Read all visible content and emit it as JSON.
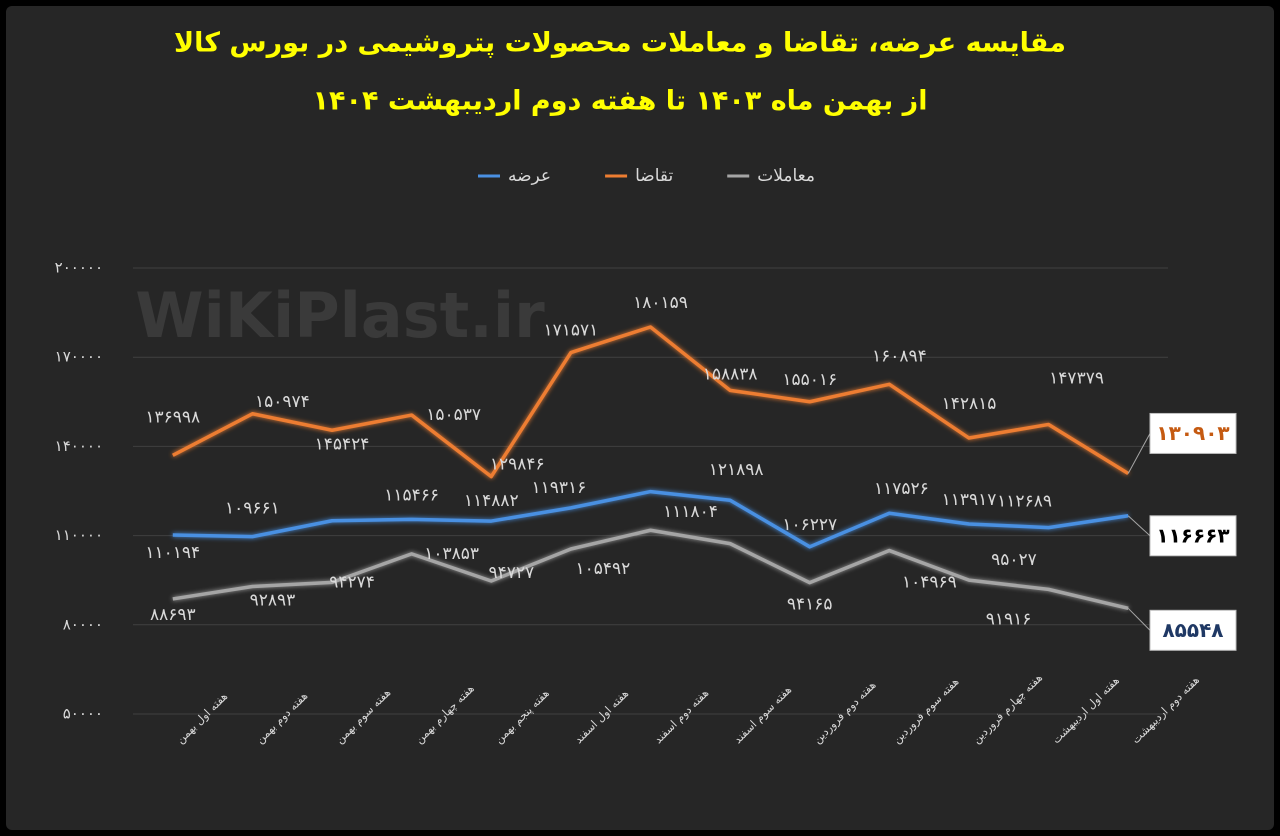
{
  "chart_data": {
    "type": "line",
    "title": "مقایسه عرضه، تقاضا و معاملات محصولات پتروشیمی در بورس کالا",
    "subtitle": "از بهمن ماه ۱۴۰۳ تا هفته دوم اردیبهشت ۱۴۰۴",
    "watermark": "WiKiPlast.ir",
    "categories": [
      "هفته اول بهمن",
      "هفته دوم بهمن",
      "هفته سوم بهمن",
      "هفته چهارم بهمن",
      "هفته پنجم بهمن",
      "هفته اول اسفند",
      "هفته دوم اسفند",
      "هفته سوم اسفند",
      "هفته دوم فروردین",
      "هفته سوم فروردین",
      "هفته چهارم فروردین",
      "هفته اول اردیبهشت",
      "هفته دوم اردیبهشت"
    ],
    "series": [
      {
        "name": "عرضه",
        "color": "#4a90e2",
        "values": [
          110194,
          109661,
          115000,
          115466,
          114882,
          119316,
          124800,
          121898,
          106227,
          117526,
          113917,
          112689,
          116663
        ],
        "value_labels": [
          "۱۱۰۱۹۴",
          "۱۰۹۶۶۱",
          null,
          "۱۱۵۴۶۶",
          "۱۱۴۸۸۲",
          "۱۱۹۳۱۶",
          null,
          "۱۲۱۸۹۸",
          "۱۰۶۲۲۷",
          "۱۱۷۵۲۶",
          "۱۱۳۹۱۷",
          "۱۱۲۶۸۹",
          "۱۱۶۶۶۳"
        ]
      },
      {
        "name": "تقاضا",
        "color": "#ed7d31",
        "values": [
          136998,
          150974,
          145424,
          150537,
          129846,
          171571,
          180159,
          158838,
          155016,
          160894,
          142815,
          147379,
          130903
        ],
        "value_labels": [
          "۱۳۶۹۹۸",
          "۱۵۰۹۷۴",
          "۱۴۵۴۲۴",
          "۱۵۰۵۳۷",
          "۱۲۹۸۴۶",
          "۱۷۱۵۷۱",
          "۱۸۰۱۵۹",
          "۱۵۸۸۳۸",
          "۱۵۵۰۱۶",
          "۱۶۰۸۹۴",
          "۱۴۲۸۱۵",
          "۱۴۷۳۷۹",
          "۱۳۰۹۰۳"
        ]
      },
      {
        "name": "معاملات",
        "color": "#a5a5a5",
        "values": [
          88693,
          92893,
          94274,
          103853,
          94727,
          105492,
          111804,
          107300,
          94165,
          104969,
          95027,
          91916,
          85548
        ],
        "value_labels": [
          "۸۸۶۹۳",
          "۹۲۸۹۳",
          "۹۴۲۷۴",
          "۱۰۳۸۵۳",
          "۹۴۷۲۷",
          "۱۰۵۴۹۲",
          "۱۱۱۸۰۴",
          null,
          "۹۴۱۶۵",
          "۱۰۴۹۶۹",
          "۹۵۰۲۷",
          "۹۱۹۱۶",
          "۸۵۵۴۸"
        ]
      }
    ],
    "ylim": [
      50000,
      200000
    ],
    "yticks": [
      {
        "value": 50000,
        "label": "۵۰۰۰۰"
      },
      {
        "value": 80000,
        "label": "۸۰۰۰۰"
      },
      {
        "value": 110000,
        "label": "۱۱۰۰۰۰"
      },
      {
        "value": 140000,
        "label": "۱۴۰۰۰۰"
      },
      {
        "value": 170000,
        "label": "۱۷۰۰۰۰"
      },
      {
        "value": 200000,
        "label": "۲۰۰۰۰۰"
      }
    ],
    "grid": true,
    "legend": "top"
  }
}
